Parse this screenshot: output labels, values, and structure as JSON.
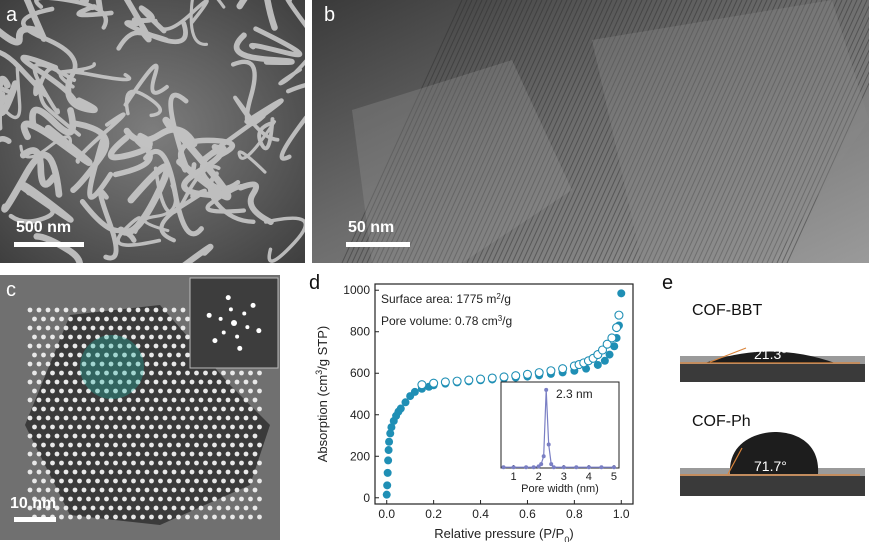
{
  "panel_a": {
    "label": "a",
    "scale_bar": "500 nm"
  },
  "panel_b": {
    "label": "b",
    "scale_bar": "50 nm"
  },
  "panel_c": {
    "label": "c",
    "scale_bar": "10 nm"
  },
  "panel_d": {
    "label": "d"
  },
  "panel_e": {
    "label": "e",
    "samples": [
      {
        "name": "COF-BBT",
        "angle": "21.3°"
      },
      {
        "name": "COF-Ph",
        "angle": "71.7°"
      }
    ]
  },
  "colors": {
    "adsorption": "#1f8fb5",
    "desorption": "#1f8fb5",
    "pore_dist": "#7a7fc4",
    "contact_line": "#d9843b"
  },
  "chart_data": [
    {
      "type": "scatter",
      "xlabel": "Relative pressure (P/P",
      "xlabel_sub": "0",
      "xlabel_end": ")",
      "ylabel": "Absorption (cm",
      "ylabel_sup": "3",
      "ylabel_end": "/g STP)",
      "xlim": [
        -0.05,
        1.05
      ],
      "ylim": [
        -30,
        1030
      ],
      "xticks": [
        "0.0",
        "0.2",
        "0.4",
        "0.6",
        "0.8",
        "1.0"
      ],
      "yticks": [
        "0",
        "200",
        "400",
        "600",
        "800",
        "1000"
      ],
      "annotations": [
        {
          "text": "Surface area: 1775 m",
          "sup": "2",
          "end": "/g"
        },
        {
          "text": "Pore volume: 0.78 cm",
          "sup": "3",
          "end": "/g"
        }
      ],
      "series": [
        {
          "fill": "solid",
          "x": [
            0.0,
            0.002,
            0.004,
            0.006,
            0.008,
            0.01,
            0.015,
            0.02,
            0.03,
            0.04,
            0.05,
            0.06,
            0.08,
            0.1,
            0.12,
            0.15,
            0.18,
            0.2,
            0.25,
            0.3,
            0.35,
            0.4,
            0.45,
            0.5,
            0.55,
            0.6,
            0.65,
            0.7,
            0.75,
            0.8,
            0.85,
            0.9,
            0.93,
            0.95,
            0.97,
            0.98,
            0.99,
            1.0
          ],
          "y": [
            15,
            60,
            120,
            180,
            230,
            270,
            310,
            340,
            370,
            395,
            415,
            430,
            460,
            490,
            510,
            525,
            535,
            542,
            550,
            556,
            561,
            566,
            570,
            575,
            579,
            584,
            590,
            597,
            604,
            612,
            622,
            640,
            660,
            690,
            730,
            770,
            830,
            985
          ]
        },
        {
          "fill": "hollow",
          "x": [
            0.15,
            0.2,
            0.25,
            0.3,
            0.35,
            0.4,
            0.45,
            0.5,
            0.55,
            0.6,
            0.65,
            0.7,
            0.75,
            0.8,
            0.82,
            0.84,
            0.86,
            0.88,
            0.9,
            0.92,
            0.94,
            0.96,
            0.98,
            0.99
          ],
          "y": [
            545,
            552,
            558,
            562,
            567,
            572,
            577,
            582,
            588,
            595,
            603,
            612,
            622,
            635,
            642,
            650,
            660,
            672,
            690,
            712,
            740,
            770,
            820,
            880
          ]
        }
      ]
    },
    {
      "type": "line",
      "xlabel": "Pore width (nm)",
      "xlim": [
        0.5,
        5.2
      ],
      "ylim": [
        0,
        1.1
      ],
      "xticks": [
        "1",
        "2",
        "3",
        "4",
        "5"
      ],
      "annotation": "2.3 nm",
      "x": [
        0.6,
        1.0,
        1.5,
        1.8,
        2.0,
        2.1,
        2.2,
        2.3,
        2.4,
        2.5,
        2.6,
        3.0,
        3.5,
        4.0,
        4.5,
        5.0
      ],
      "y": [
        0.01,
        0.01,
        0.01,
        0.01,
        0.02,
        0.05,
        0.15,
        1.0,
        0.3,
        0.05,
        0.01,
        0.01,
        0.01,
        0.01,
        0.01,
        0.01
      ]
    }
  ]
}
